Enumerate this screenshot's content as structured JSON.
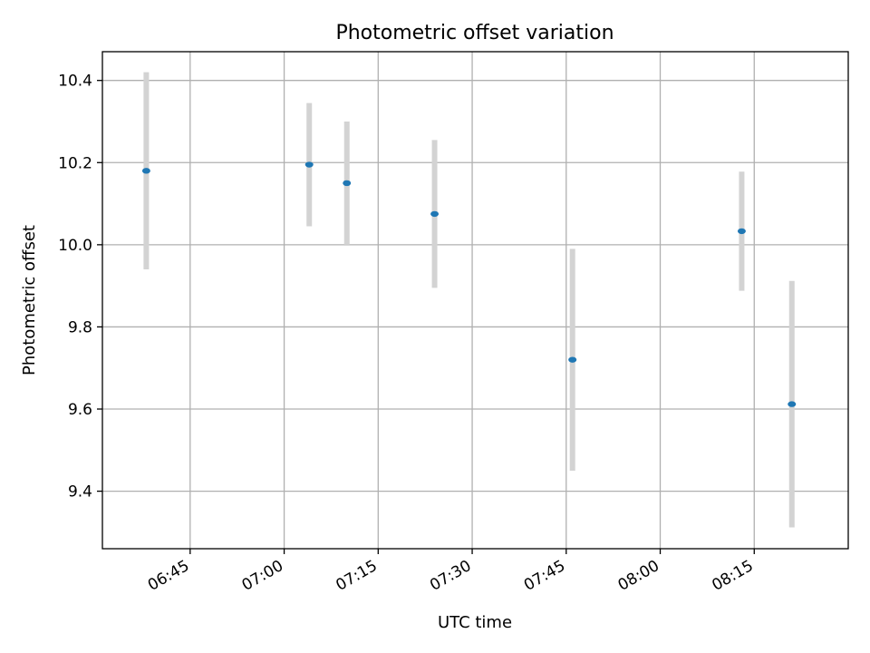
{
  "chart_data": {
    "type": "scatter",
    "title": "Photometric offset variation",
    "xlabel": "UTC time",
    "ylabel": "Photometric offset",
    "grid": true,
    "legend": "none",
    "xlim": [
      "06:31",
      "08:30"
    ],
    "ylim": [
      9.26,
      10.47
    ],
    "x_ticks": [
      "06:45",
      "07:00",
      "07:15",
      "07:30",
      "07:45",
      "08:00",
      "08:15"
    ],
    "y_ticks": [
      "9.4",
      "9.6",
      "9.8",
      "10.0",
      "10.2",
      "10.4"
    ],
    "colors": {
      "point": "#1f77b4",
      "errorbar": "#d3d3d3",
      "grid": "#b0b0b0"
    },
    "points": [
      {
        "x": "06:38",
        "y": 10.18,
        "err": 0.24
      },
      {
        "x": "07:04",
        "y": 10.195,
        "err": 0.15
      },
      {
        "x": "07:10",
        "y": 10.15,
        "err": 0.15
      },
      {
        "x": "07:24",
        "y": 10.075,
        "err": 0.18
      },
      {
        "x": "07:46",
        "y": 9.72,
        "err": 0.27
      },
      {
        "x": "08:13",
        "y": 10.033,
        "err": 0.145
      },
      {
        "x": "08:21",
        "y": 9.612,
        "err": 0.3
      }
    ]
  }
}
